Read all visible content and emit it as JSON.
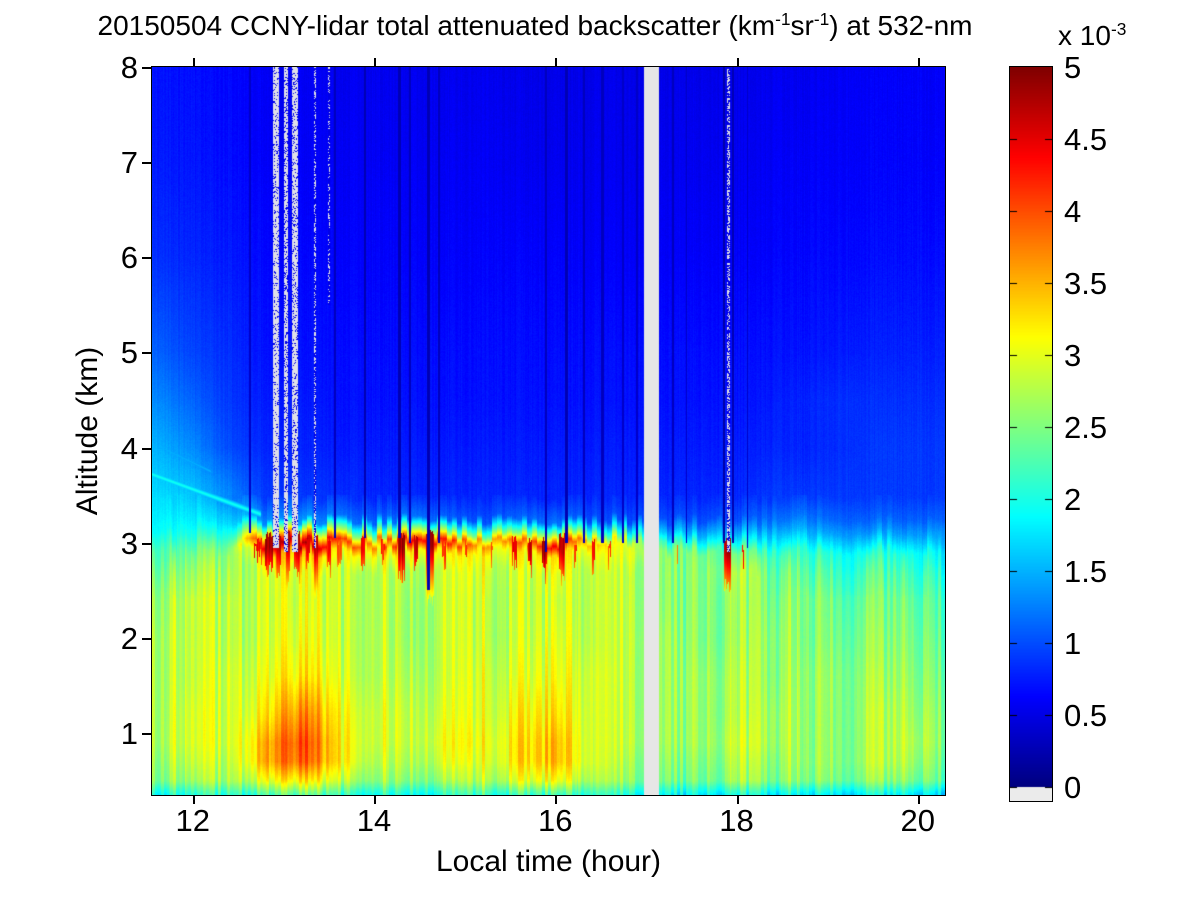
{
  "figure": {
    "title": {
      "part1": "20150504 CCNY-lidar total attenuated backscatter (km",
      "sup1": "-1",
      "part2": "sr",
      "sup2": "-1",
      "part3": ") at 532-nm"
    },
    "x_axis": {
      "label": "Local time (hour)",
      "range": [
        11.55,
        20.3
      ],
      "tick_values": [
        12,
        14,
        16,
        18,
        20
      ],
      "tick_labels": [
        "12",
        "14",
        "16",
        "18",
        "20"
      ]
    },
    "y_axis": {
      "label": "Altitude (km)",
      "range": [
        0.35,
        8
      ],
      "tick_values": [
        1,
        2,
        3,
        4,
        5,
        6,
        7,
        8
      ],
      "tick_labels": [
        "1",
        "2",
        "3",
        "4",
        "5",
        "6",
        "7",
        "8"
      ]
    },
    "colorbar": {
      "scale_prefix": "x 10",
      "scale_exponent": "-3",
      "range": [
        0,
        5
      ],
      "tick_values": [
        5,
        4.5,
        4,
        3.5,
        3,
        2.5,
        2,
        1.5,
        1,
        0.5,
        0
      ],
      "tick_labels": [
        "5",
        "4.5",
        "4",
        "3.5",
        "3",
        "2.5",
        "2",
        "1.5",
        "1",
        "0.5",
        "0"
      ],
      "under_color": "#ebebeb"
    }
  },
  "chart_data": {
    "type": "heatmap",
    "title": "20150504 CCNY-lidar total attenuated backscatter (km-1 sr-1) at 532-nm",
    "xlabel": "Local time (hour)",
    "ylabel": "Altitude (km)",
    "colormap": "jet",
    "value_units": "1e-3 km-1 sr-1",
    "value_range": [
      0,
      5
    ],
    "x_range": [
      11.55,
      20.3
    ],
    "y_range": [
      0.35,
      8
    ],
    "grid": {
      "times": [
        11.6,
        12.0,
        12.4,
        12.8,
        13.2,
        13.6,
        14.0,
        14.4,
        14.8,
        15.2,
        15.6,
        16.0,
        16.4,
        16.8,
        17.2,
        17.6,
        18.0,
        18.4,
        18.8,
        19.2,
        19.6,
        20.0,
        20.3
      ],
      "altitudes": [
        0.35,
        0.5,
        0.7,
        0.9,
        1.2,
        1.6,
        2.0,
        2.4,
        2.7,
        2.9,
        3.0,
        3.1,
        3.25,
        3.5,
        4.0,
        4.5,
        5.0,
        6.0,
        7.0,
        8.0
      ],
      "values": [
        [
          2.0,
          2.0,
          2.1,
          2.2,
          2.3,
          2.2,
          2.1,
          2.1,
          2.1,
          2.1,
          2.1,
          2.1,
          2.1,
          2.0,
          1.9,
          1.9,
          1.9,
          1.8,
          1.8,
          1.8,
          1.8,
          1.8,
          1.8
        ],
        [
          2.6,
          2.6,
          2.7,
          3.0,
          3.2,
          2.9,
          2.7,
          2.7,
          2.7,
          2.7,
          2.9,
          3.0,
          2.7,
          2.6,
          2.5,
          2.5,
          2.6,
          2.5,
          2.5,
          2.5,
          2.5,
          2.5,
          2.5
        ],
        [
          2.7,
          2.8,
          2.8,
          3.5,
          3.9,
          3.3,
          2.9,
          2.9,
          3.0,
          2.9,
          3.2,
          3.4,
          2.9,
          2.7,
          2.6,
          2.6,
          2.7,
          2.6,
          2.6,
          2.6,
          2.7,
          2.7,
          2.6
        ],
        [
          2.8,
          2.9,
          2.9,
          3.5,
          4.0,
          3.3,
          3.0,
          3.0,
          3.1,
          3.0,
          3.2,
          3.4,
          2.9,
          2.8,
          2.7,
          2.7,
          2.8,
          2.7,
          2.6,
          2.6,
          2.7,
          2.8,
          2.7
        ],
        [
          2.8,
          2.9,
          2.9,
          3.2,
          3.7,
          3.2,
          3.0,
          3.0,
          3.0,
          2.9,
          3.1,
          3.2,
          2.9,
          2.8,
          2.7,
          2.7,
          2.7,
          2.7,
          2.6,
          2.6,
          2.7,
          2.7,
          2.7
        ],
        [
          2.8,
          2.8,
          2.9,
          3.0,
          3.2,
          3.0,
          2.9,
          2.9,
          2.9,
          2.9,
          2.9,
          3.0,
          2.9,
          2.8,
          2.7,
          2.7,
          2.7,
          2.6,
          2.6,
          2.6,
          2.6,
          2.6,
          2.6
        ],
        [
          2.8,
          2.8,
          2.8,
          2.9,
          3.0,
          2.9,
          2.9,
          2.8,
          2.9,
          2.8,
          2.8,
          2.9,
          2.8,
          2.8,
          2.7,
          2.6,
          2.6,
          2.6,
          2.5,
          2.5,
          2.5,
          2.5,
          2.5
        ],
        [
          2.7,
          2.8,
          2.8,
          2.9,
          2.9,
          2.9,
          2.9,
          2.8,
          2.9,
          2.8,
          2.8,
          2.8,
          2.8,
          2.8,
          2.6,
          2.6,
          2.6,
          2.5,
          2.5,
          2.4,
          2.4,
          2.4,
          2.4
        ],
        [
          2.5,
          2.6,
          2.7,
          2.9,
          3.0,
          2.9,
          2.9,
          2.9,
          2.9,
          2.9,
          2.8,
          2.9,
          2.8,
          2.8,
          2.6,
          2.6,
          2.7,
          2.4,
          2.3,
          2.2,
          2.2,
          2.2,
          2.2
        ],
        [
          2.3,
          2.4,
          2.6,
          3.3,
          3.5,
          3.2,
          3.2,
          3.3,
          3.2,
          3.1,
          3.1,
          3.2,
          3.0,
          3.0,
          2.6,
          2.5,
          2.4,
          2.2,
          2.1,
          2.0,
          2.0,
          2.0,
          1.9
        ],
        [
          2.1,
          2.2,
          2.4,
          4.6,
          4.8,
          4.2,
          3.8,
          4.5,
          4.3,
          3.6,
          3.8,
          4.4,
          3.4,
          3.0,
          2.2,
          2.0,
          1.9,
          1.9,
          1.8,
          1.7,
          1.7,
          1.7,
          1.6
        ],
        [
          1.9,
          2.0,
          2.1,
          3.2,
          3.6,
          2.8,
          2.4,
          3.0,
          2.8,
          2.3,
          2.5,
          3.0,
          2.2,
          2.1,
          1.6,
          1.5,
          1.5,
          1.6,
          1.5,
          1.4,
          1.4,
          1.4,
          1.4
        ],
        [
          1.8,
          1.8,
          1.7,
          1.3,
          1.4,
          1.2,
          1.1,
          1.2,
          1.1,
          1.0,
          1.1,
          1.2,
          1.0,
          1.0,
          1.0,
          1.0,
          1.0,
          1.2,
          1.2,
          1.1,
          1.1,
          1.1,
          1.1
        ],
        [
          1.7,
          1.6,
          1.3,
          0.9,
          0.9,
          0.85,
          0.8,
          0.8,
          0.8,
          0.8,
          0.8,
          0.8,
          0.8,
          0.8,
          0.8,
          0.8,
          0.8,
          0.9,
          0.9,
          0.9,
          0.9,
          0.9,
          0.9
        ],
        [
          1.5,
          1.3,
          1.0,
          0.8,
          0.8,
          0.75,
          0.75,
          0.75,
          0.75,
          0.75,
          0.75,
          0.75,
          0.75,
          0.75,
          0.75,
          0.75,
          0.75,
          0.8,
          0.8,
          0.85,
          0.9,
          0.9,
          0.9
        ],
        [
          1.3,
          1.1,
          0.9,
          0.75,
          0.75,
          0.7,
          0.7,
          0.7,
          0.7,
          0.7,
          0.7,
          0.7,
          0.7,
          0.7,
          0.7,
          0.7,
          0.7,
          0.75,
          0.8,
          0.85,
          0.85,
          0.85,
          0.85
        ],
        [
          1.1,
          0.95,
          0.85,
          0.7,
          0.7,
          0.68,
          0.68,
          0.68,
          0.68,
          0.68,
          0.68,
          0.68,
          0.68,
          0.68,
          0.68,
          0.68,
          0.68,
          0.7,
          0.72,
          0.75,
          0.78,
          0.78,
          0.78
        ],
        [
          0.85,
          0.8,
          0.75,
          0.65,
          0.65,
          0.62,
          0.62,
          0.62,
          0.62,
          0.62,
          0.62,
          0.62,
          0.6,
          0.6,
          0.6,
          0.6,
          0.6,
          0.62,
          0.65,
          0.65,
          0.68,
          0.68,
          0.68
        ],
        [
          0.75,
          0.72,
          0.68,
          0.6,
          0.6,
          0.58,
          0.58,
          0.58,
          0.58,
          0.58,
          0.55,
          0.55,
          0.55,
          0.55,
          0.55,
          0.55,
          0.55,
          0.58,
          0.6,
          0.6,
          0.62,
          0.62,
          0.62
        ],
        [
          0.7,
          0.68,
          0.65,
          0.58,
          0.58,
          0.55,
          0.55,
          0.55,
          0.55,
          0.55,
          0.52,
          0.52,
          0.52,
          0.52,
          0.52,
          0.52,
          0.52,
          0.55,
          0.55,
          0.58,
          0.6,
          0.6,
          0.6
        ]
      ]
    },
    "cloud_spots": [
      {
        "t": 12.72,
        "dt": 0.08,
        "top": 3.02,
        "bot": 2.85,
        "v": 4.5
      },
      {
        "t": 12.84,
        "dt": 0.07,
        "top": 3.08,
        "bot": 2.7,
        "v": 5.0
      },
      {
        "t": 12.95,
        "dt": 0.05,
        "top": 3.1,
        "bot": 2.75,
        "v": 4.8
      },
      {
        "t": 13.05,
        "dt": 0.06,
        "top": 3.12,
        "bot": 2.6,
        "v": 5.0
      },
      {
        "t": 13.15,
        "dt": 0.07,
        "top": 3.1,
        "bot": 2.65,
        "v": 4.9
      },
      {
        "t": 13.27,
        "dt": 0.05,
        "top": 3.08,
        "bot": 2.8,
        "v": 4.7
      },
      {
        "t": 13.36,
        "dt": 0.04,
        "top": 3.05,
        "bot": 2.5,
        "v": 4.9
      },
      {
        "t": 13.5,
        "dt": 0.05,
        "top": 3.05,
        "bot": 2.75,
        "v": 4.5
      },
      {
        "t": 13.62,
        "dt": 0.04,
        "top": 3.0,
        "bot": 2.8,
        "v": 4.2
      },
      {
        "t": 13.88,
        "dt": 0.05,
        "top": 3.05,
        "bot": 2.72,
        "v": 4.7
      },
      {
        "t": 14.1,
        "dt": 0.04,
        "top": 3.02,
        "bot": 2.8,
        "v": 4.4
      },
      {
        "t": 14.3,
        "dt": 0.08,
        "top": 3.08,
        "bot": 2.6,
        "v": 5.0
      },
      {
        "t": 14.46,
        "dt": 0.05,
        "top": 3.05,
        "bot": 2.72,
        "v": 4.8
      },
      {
        "t": 14.62,
        "dt": 0.07,
        "top": 3.1,
        "bot": 2.4,
        "v": 5.0
      },
      {
        "t": 14.77,
        "dt": 0.04,
        "top": 3.0,
        "bot": 2.8,
        "v": 4.4
      },
      {
        "t": 15.02,
        "dt": 0.04,
        "top": 3.0,
        "bot": 2.84,
        "v": 4.2
      },
      {
        "t": 15.3,
        "dt": 0.03,
        "top": 3.0,
        "bot": 2.85,
        "v": 4.2
      },
      {
        "t": 15.55,
        "dt": 0.05,
        "top": 3.04,
        "bot": 2.78,
        "v": 4.6
      },
      {
        "t": 15.72,
        "dt": 0.05,
        "top": 3.02,
        "bot": 2.72,
        "v": 4.8
      },
      {
        "t": 15.88,
        "dt": 0.05,
        "top": 3.05,
        "bot": 2.68,
        "v": 5.0
      },
      {
        "t": 16.07,
        "dt": 0.06,
        "top": 3.08,
        "bot": 2.64,
        "v": 4.9
      },
      {
        "t": 16.22,
        "dt": 0.03,
        "top": 3.0,
        "bot": 2.84,
        "v": 4.3
      },
      {
        "t": 16.42,
        "dt": 0.04,
        "top": 3.02,
        "bot": 2.78,
        "v": 4.6
      },
      {
        "t": 16.6,
        "dt": 0.03,
        "top": 3.0,
        "bot": 2.84,
        "v": 4.2
      },
      {
        "t": 17.35,
        "dt": 0.025,
        "top": 3.0,
        "bot": 2.9,
        "v": 4.0
      },
      {
        "t": 17.9,
        "dt": 0.06,
        "top": 3.05,
        "bot": 2.55,
        "v": 5.0
      },
      {
        "t": 18.07,
        "dt": 0.03,
        "top": 2.95,
        "bot": 2.78,
        "v": 4.6
      }
    ],
    "white_stripes": [
      {
        "t": 12.92,
        "dt": 0.07,
        "bottom": 2.95,
        "density": 0.85
      },
      {
        "t": 13.03,
        "dt": 0.05,
        "bottom": 2.9,
        "density": 0.75
      },
      {
        "t": 13.13,
        "dt": 0.06,
        "bottom": 2.9,
        "density": 0.8
      },
      {
        "t": 13.35,
        "dt": 0.025,
        "bottom": 2.95,
        "density": 0.45
      },
      {
        "t": 13.5,
        "dt": 0.02,
        "bottom": 5.5,
        "density": 0.3
      },
      {
        "t": 17.91,
        "dt": 0.03,
        "bottom": 2.9,
        "density": 0.5
      }
    ],
    "dark_stripes": [
      {
        "t": 12.63,
        "dt": 0.025,
        "bottom": 3.1,
        "v": 0.35
      },
      {
        "t": 13.57,
        "dt": 0.03,
        "bottom": 3.05,
        "v": 0.3
      },
      {
        "t": 13.9,
        "dt": 0.03,
        "bottom": 3.05,
        "v": 0.25
      },
      {
        "t": 14.28,
        "dt": 0.04,
        "bottom": 3.05,
        "v": 0.25
      },
      {
        "t": 14.4,
        "dt": 0.02,
        "bottom": 3.0,
        "v": 0.3
      },
      {
        "t": 14.6,
        "dt": 0.04,
        "bottom": 2.5,
        "v": 0.25
      },
      {
        "t": 14.72,
        "dt": 0.02,
        "bottom": 3.0,
        "v": 0.3
      },
      {
        "t": 15.9,
        "dt": 0.025,
        "bottom": 2.9,
        "v": 0.3
      },
      {
        "t": 16.12,
        "dt": 0.03,
        "bottom": 3.0,
        "v": 0.25
      },
      {
        "t": 16.32,
        "dt": 0.02,
        "bottom": 3.0,
        "v": 0.3
      },
      {
        "t": 16.52,
        "dt": 0.025,
        "bottom": 3.0,
        "v": 0.3
      },
      {
        "t": 16.75,
        "dt": 0.02,
        "bottom": 3.0,
        "v": 0.35
      },
      {
        "t": 16.9,
        "dt": 0.02,
        "bottom": 3.0,
        "v": 0.35
      },
      {
        "t": 17.3,
        "dt": 0.02,
        "bottom": 3.0,
        "v": 0.3
      },
      {
        "t": 17.45,
        "dt": 0.015,
        "bottom": 3.0,
        "v": 0.35
      },
      {
        "t": 17.86,
        "dt": 0.022,
        "bottom": 3.0,
        "v": 0.2
      },
      {
        "t": 17.96,
        "dt": 0.022,
        "bottom": 3.0,
        "v": 0.25
      },
      {
        "t": 18.12,
        "dt": 0.015,
        "bottom": 2.95,
        "v": 0.35
      }
    ],
    "data_gap": {
      "t0": 16.98,
      "t1": 17.14,
      "color": "#e6e6e6"
    },
    "thin_layers": [
      {
        "t0": 11.55,
        "a0": 3.72,
        "t1": 12.75,
        "a1": 3.3,
        "v": 2.0,
        "w": 0.05
      },
      {
        "t0": 11.55,
        "a0": 4.05,
        "t1": 12.2,
        "a1": 3.75,
        "v": 1.5,
        "w": 0.06
      }
    ]
  }
}
